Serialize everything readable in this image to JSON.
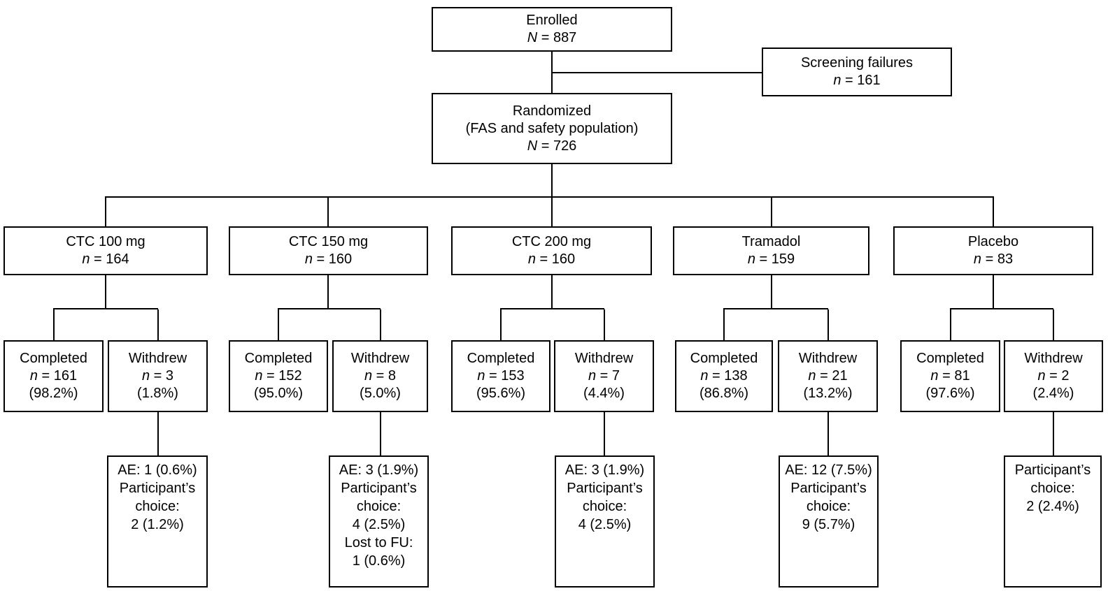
{
  "colors": {
    "background": "#ffffff",
    "box_border": "#000000",
    "line": "#000000",
    "text": "#000000"
  },
  "enrolled": {
    "title": "Enrolled",
    "n_var": "N",
    "n_eq": "= 887"
  },
  "screening": {
    "title": "Screening failures",
    "n_var": "n",
    "n_eq": "= 161"
  },
  "randomized": {
    "title": "Randomized",
    "subtitle": "(FAS and safety population)",
    "n_var": "N",
    "n_eq": "= 726"
  },
  "arms": [
    {
      "label": "CTC 100 mg",
      "n_var": "n",
      "n_eq": "= 164",
      "completed": {
        "title": "Completed",
        "n_var": "n",
        "n_eq": "= 161",
        "pct": "(98.2%)"
      },
      "withdrew": {
        "title": "Withdrew",
        "n_var": "n",
        "n_eq": "= 3",
        "pct": "(1.8%)"
      },
      "reasons": [
        "AE: 1 (0.6%)",
        "Participant’s",
        "choice:",
        "2 (1.2%)"
      ]
    },
    {
      "label": "CTC 150 mg",
      "n_var": "n",
      "n_eq": "= 160",
      "completed": {
        "title": "Completed",
        "n_var": "n",
        "n_eq": "= 152",
        "pct": "(95.0%)"
      },
      "withdrew": {
        "title": "Withdrew",
        "n_var": "n",
        "n_eq": "= 8",
        "pct": "(5.0%)"
      },
      "reasons": [
        "AE: 3 (1.9%)",
        "Participant’s",
        "choice:",
        "4 (2.5%)",
        "Lost to FU:",
        "1 (0.6%)"
      ]
    },
    {
      "label": "CTC 200 mg",
      "n_var": "n",
      "n_eq": "= 160",
      "completed": {
        "title": "Completed",
        "n_var": "n",
        "n_eq": "= 153",
        "pct": "(95.6%)"
      },
      "withdrew": {
        "title": "Withdrew",
        "n_var": "n",
        "n_eq": "= 7",
        "pct": "(4.4%)"
      },
      "reasons": [
        "AE: 3 (1.9%)",
        "Participant’s",
        "choice:",
        "4 (2.5%)"
      ]
    },
    {
      "label": "Tramadol",
      "n_var": "n",
      "n_eq": "= 159",
      "completed": {
        "title": "Completed",
        "n_var": "n",
        "n_eq": "= 138",
        "pct": "(86.8%)"
      },
      "withdrew": {
        "title": "Withdrew",
        "n_var": "n",
        "n_eq": "= 21",
        "pct": "(13.2%)"
      },
      "reasons": [
        "AE: 12 (7.5%)",
        "Participant’s",
        "choice:",
        "9 (5.7%)"
      ]
    },
    {
      "label": "Placebo",
      "n_var": "n",
      "n_eq": "= 83",
      "completed": {
        "title": "Completed",
        "n_var": "n",
        "n_eq": "= 81",
        "pct": "(97.6%)"
      },
      "withdrew": {
        "title": "Withdrew",
        "n_var": "n",
        "n_eq": "= 2",
        "pct": "(2.4%)"
      },
      "reasons": [
        "Participant’s",
        "choice:",
        "2 (2.4%)"
      ]
    }
  ]
}
